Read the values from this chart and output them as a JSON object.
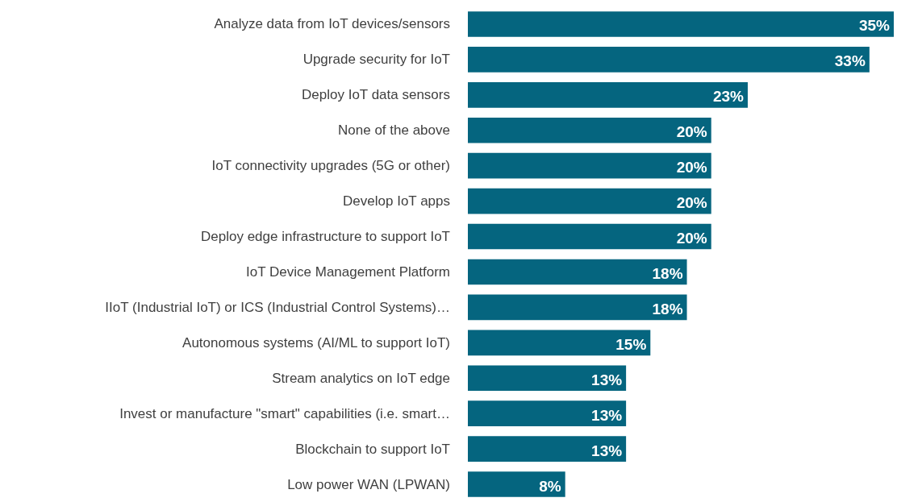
{
  "chart_data": {
    "type": "bar",
    "orientation": "horizontal",
    "categories": [
      "Analyze data from IoT devices/sensors",
      "Upgrade security for IoT",
      "Deploy IoT data sensors",
      "None of the above",
      "IoT connectivity upgrades (5G or other)",
      "Develop IoT apps",
      "Deploy edge infrastructure to support IoT",
      "IoT Device Management Platform",
      "IIoT (Industrial IoT) or ICS (Industrial Control Systems)…",
      "Autonomous systems (AI/ML to support IoT)",
      "Stream analytics on IoT edge",
      "Invest or manufacture \"smart\" capabilities (i.e. smart…",
      "Blockchain to support IoT",
      "Low power WAN (LPWAN)"
    ],
    "values": [
      35,
      33,
      23,
      20,
      20,
      20,
      20,
      18,
      18,
      15,
      13,
      13,
      13,
      8
    ],
    "value_labels": [
      "35%",
      "33%",
      "23%",
      "20%",
      "20%",
      "20%",
      "20%",
      "18%",
      "18%",
      "15%",
      "13%",
      "13%",
      "13%",
      "8%"
    ],
    "color": "#05657f"
  }
}
